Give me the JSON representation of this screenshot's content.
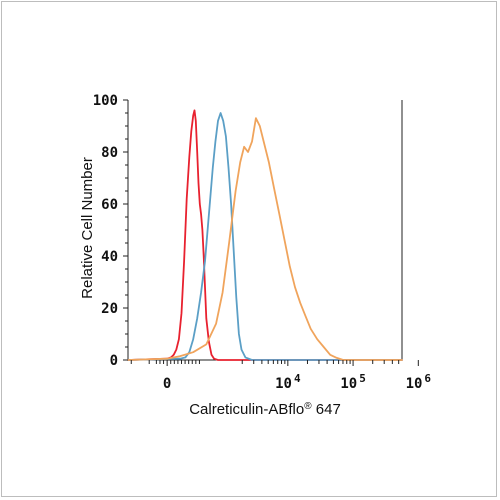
{
  "chart_data": {
    "type": "line",
    "title": "",
    "xlabel": "Calreticulin-ABflo",
    "xlabel_sup": "®",
    "xlabel_suffix": " 647",
    "ylabel": "Relative Cell Number",
    "ylim": [
      0,
      100
    ],
    "y_ticks": [
      0,
      20,
      40,
      60,
      80,
      100
    ],
    "x_scale": "biexponential",
    "x_ticks": [
      {
        "value": 0,
        "base": "0",
        "exp": ""
      },
      {
        "value": 10000,
        "base": "10",
        "exp": "4"
      },
      {
        "value": 100000,
        "base": "10",
        "exp": "5"
      },
      {
        "value": 1000000,
        "base": "10",
        "exp": "6"
      }
    ],
    "grid": false,
    "legend": "none",
    "series": [
      {
        "color": "#e8212f",
        "points": [
          [
            -0.6,
            0
          ],
          [
            0,
            0.5
          ],
          [
            0.06,
            1
          ],
          [
            0.1,
            2
          ],
          [
            0.14,
            4
          ],
          [
            0.18,
            8
          ],
          [
            0.22,
            18
          ],
          [
            0.26,
            38
          ],
          [
            0.3,
            62
          ],
          [
            0.34,
            78
          ],
          [
            0.37,
            88
          ],
          [
            0.4,
            94
          ],
          [
            0.42,
            96
          ],
          [
            0.44,
            92
          ],
          [
            0.46,
            80
          ],
          [
            0.48,
            68
          ],
          [
            0.5,
            60
          ],
          [
            0.52,
            56
          ],
          [
            0.54,
            50
          ],
          [
            0.56,
            40
          ],
          [
            0.58,
            28
          ],
          [
            0.6,
            16
          ],
          [
            0.64,
            7
          ],
          [
            0.68,
            2
          ],
          [
            0.72,
            0.5
          ],
          [
            0.78,
            0
          ],
          [
            3.6,
            0
          ]
        ]
      },
      {
        "color": "#5b9fc6",
        "points": [
          [
            -0.6,
            0
          ],
          [
            0.2,
            0.5
          ],
          [
            0.28,
            1
          ],
          [
            0.34,
            3
          ],
          [
            0.4,
            8
          ],
          [
            0.46,
            16
          ],
          [
            0.52,
            26
          ],
          [
            0.58,
            38
          ],
          [
            0.62,
            50
          ],
          [
            0.66,
            62
          ],
          [
            0.7,
            74
          ],
          [
            0.74,
            84
          ],
          [
            0.78,
            92
          ],
          [
            0.82,
            95
          ],
          [
            0.86,
            92
          ],
          [
            0.9,
            86
          ],
          [
            0.94,
            74
          ],
          [
            0.98,
            60
          ],
          [
            1.02,
            42
          ],
          [
            1.06,
            24
          ],
          [
            1.1,
            10
          ],
          [
            1.14,
            4
          ],
          [
            1.2,
            1
          ],
          [
            1.3,
            0
          ],
          [
            3.6,
            0
          ]
        ]
      },
      {
        "color": "#f0a45c",
        "points": [
          [
            -0.6,
            0
          ],
          [
            0.0,
            0.5
          ],
          [
            0.2,
            1.5
          ],
          [
            0.4,
            3
          ],
          [
            0.6,
            6
          ],
          [
            0.75,
            14
          ],
          [
            0.85,
            26
          ],
          [
            0.95,
            45
          ],
          [
            1.05,
            65
          ],
          [
            1.12,
            76
          ],
          [
            1.18,
            82
          ],
          [
            1.24,
            80
          ],
          [
            1.3,
            84
          ],
          [
            1.36,
            93
          ],
          [
            1.42,
            90
          ],
          [
            1.48,
            84
          ],
          [
            1.56,
            76
          ],
          [
            1.64,
            66
          ],
          [
            1.72,
            56
          ],
          [
            1.8,
            46
          ],
          [
            1.88,
            36
          ],
          [
            1.96,
            28
          ],
          [
            2.04,
            22
          ],
          [
            2.12,
            17
          ],
          [
            2.2,
            12
          ],
          [
            2.3,
            8
          ],
          [
            2.4,
            5
          ],
          [
            2.5,
            2
          ],
          [
            2.6,
            0.8
          ],
          [
            2.7,
            0
          ],
          [
            3.6,
            0
          ]
        ]
      }
    ]
  }
}
